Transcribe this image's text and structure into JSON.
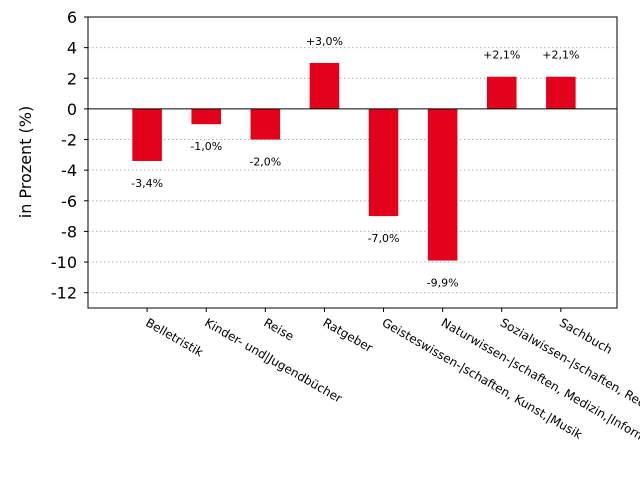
{
  "chart_data": {
    "type": "bar",
    "ylabel": "in Prozent (%)",
    "categories": [
      "Belletristik",
      "Kinder- und|Jugendbücher",
      "Reise",
      "Ratgeber",
      "Geisteswissen-|schaften, Kunst,|Musik",
      "Naturwissen-|schaften, Medizin,|Informatik, Technik",
      "Sozialwissen-|schaften, Recht,|Wirtschaft",
      "Sachbuch"
    ],
    "values": [
      -3.4,
      -1.0,
      -2.0,
      3.0,
      -7.0,
      -9.9,
      2.1,
      2.1
    ],
    "data_labels": [
      "-3,4%",
      "-1,0%",
      "-2,0%",
      "+3,0%",
      "-7,0%",
      "-9,9%",
      "+2,1%",
      "+2,1%"
    ],
    "ylim": [
      -13,
      6
    ],
    "yticks": [
      6,
      4,
      2,
      0,
      -2,
      -4,
      -6,
      -8,
      -10,
      -12
    ],
    "grid": true,
    "bar_color": "#e2001a"
  }
}
